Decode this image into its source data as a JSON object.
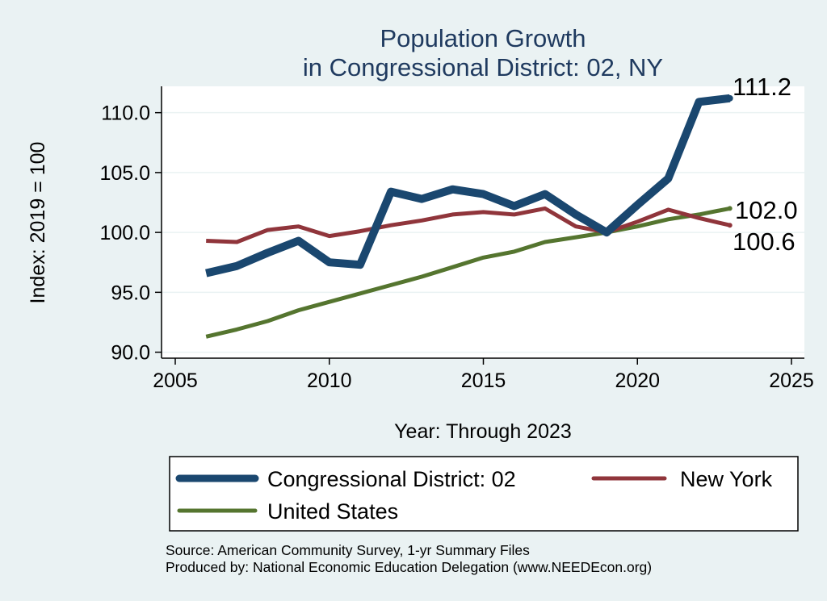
{
  "chart_data": {
    "type": "line",
    "title_lines": [
      "Population Growth",
      "in Congressional District: 02, NY"
    ],
    "xlabel": "Year: Through 2023",
    "ylabel": "Index: 2019 = 100",
    "xlim": [
      2005,
      2025
    ],
    "ylim": [
      89.5,
      112.2
    ],
    "x_ticks": [
      2005,
      2010,
      2015,
      2020,
      2025
    ],
    "y_ticks": [
      90.0,
      95.0,
      100.0,
      105.0,
      110.0
    ],
    "y_tick_labels": [
      "90.0",
      "95.0",
      "100.0",
      "105.0",
      "110.0"
    ],
    "grid": true,
    "x": [
      2006,
      2007,
      2008,
      2009,
      2010,
      2011,
      2012,
      2013,
      2014,
      2015,
      2016,
      2017,
      2018,
      2019,
      2020,
      2021,
      2022,
      2023
    ],
    "series": [
      {
        "name": "Congressional District: 02",
        "color": "#1a476f",
        "values": [
          96.6,
          97.2,
          98.3,
          99.3,
          97.5,
          97.3,
          103.4,
          102.8,
          103.6,
          103.2,
          102.2,
          103.2,
          101.5,
          100.0,
          102.3,
          104.5,
          110.9,
          111.2
        ],
        "end_label": "111.2"
      },
      {
        "name": "New York",
        "color": "#90353b",
        "values": [
          99.3,
          99.2,
          100.2,
          100.5,
          99.7,
          100.1,
          100.6,
          101.0,
          101.5,
          101.7,
          101.5,
          102.0,
          100.5,
          100.0,
          100.9,
          101.9,
          101.2,
          100.6
        ],
        "end_label": "100.6"
      },
      {
        "name": "United States",
        "color": "#55752f",
        "values": [
          91.3,
          91.9,
          92.6,
          93.5,
          94.2,
          94.9,
          95.6,
          96.3,
          97.1,
          97.9,
          98.4,
          99.2,
          99.6,
          100.0,
          100.5,
          101.1,
          101.5,
          102.0
        ],
        "end_label": "102.0"
      }
    ],
    "legend": {
      "position": "bottom",
      "entries": [
        "Congressional District: 02",
        "New York",
        "United States"
      ]
    },
    "notes": [
      "Source: American Community Survey, 1-yr Summary Files",
      "Produced by: National Economic Education Delegation (www.NEEDEcon.org)"
    ]
  }
}
